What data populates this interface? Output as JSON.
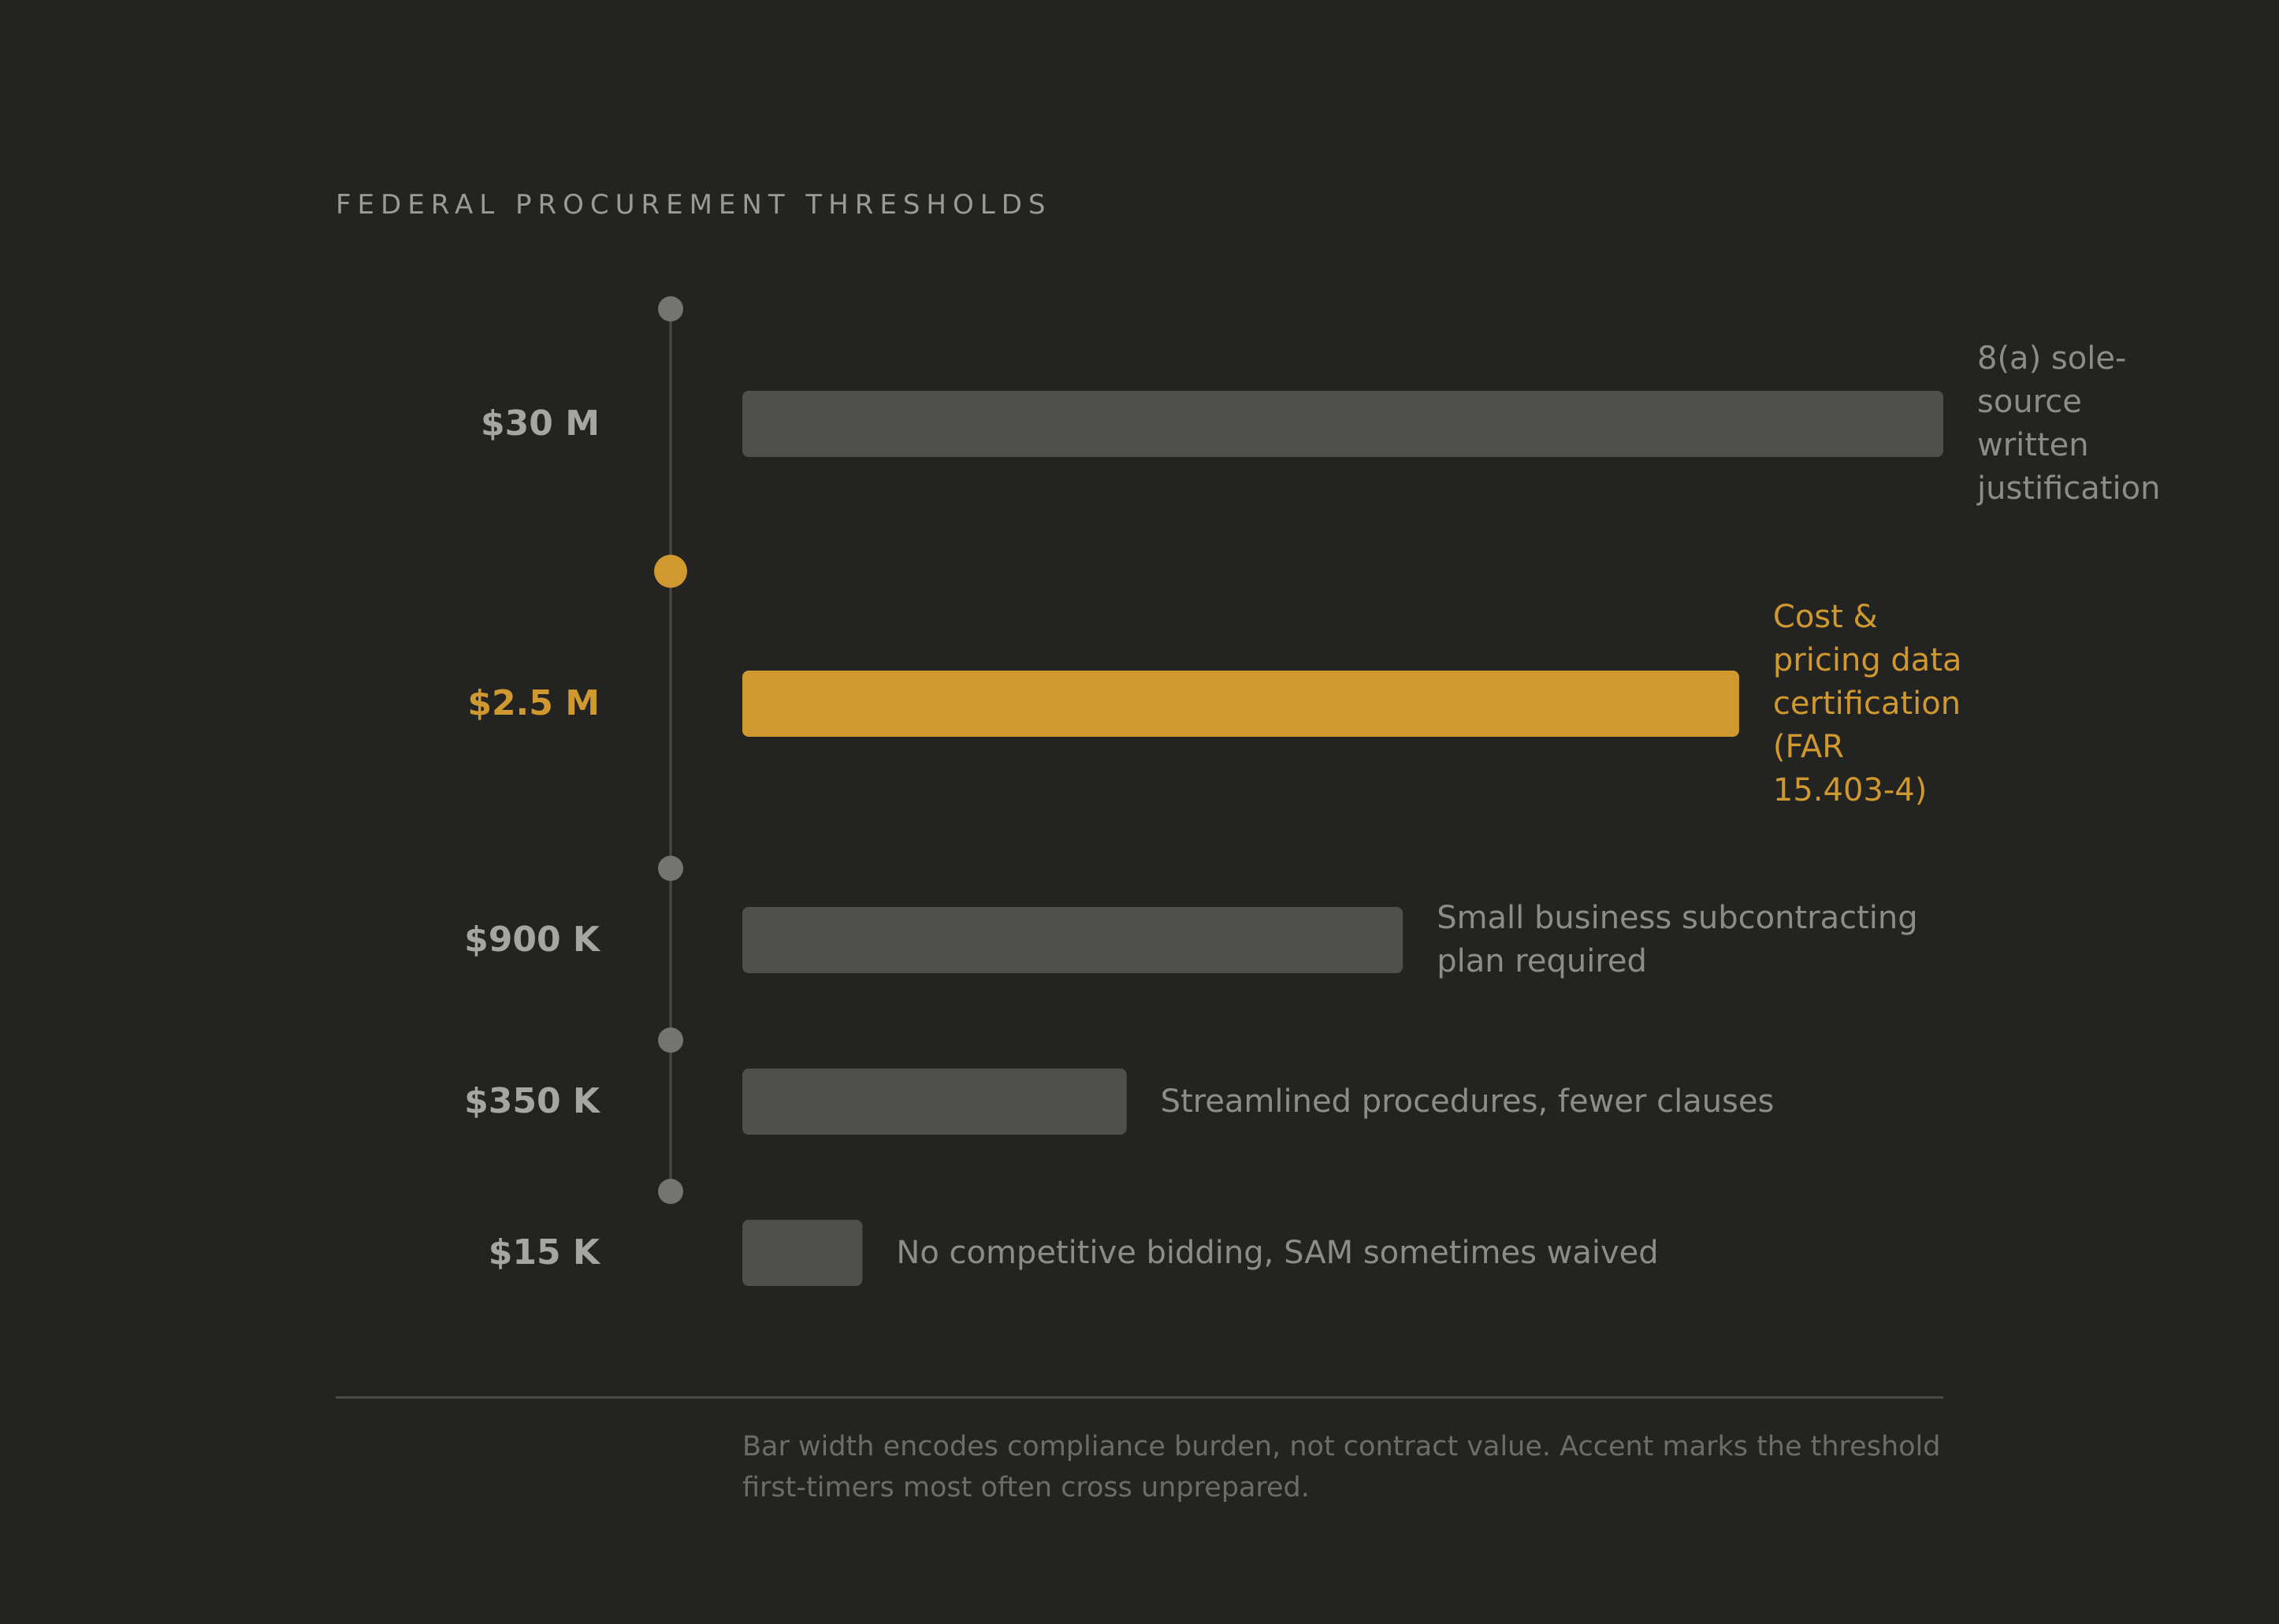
{
  "header": {
    "title": "FEDERAL PROCUREMENT THRESHOLDS"
  },
  "chart_data": {
    "type": "bar",
    "orientation": "horizontal",
    "categories": [
      "$30 M",
      "$2.5 M",
      "$900 K",
      "$350 K",
      "$15 K"
    ],
    "annotations": [
      "8(a) sole-source written justification",
      "Cost & pricing data certification (FAR 15.403-4)",
      "Small business subcontracting plan required",
      "Streamlined procedures, fewer clauses",
      "No competitive bidding, SAM sometimes waived"
    ],
    "values": [
      100,
      83,
      55,
      32,
      10
    ],
    "highlight_index": 1,
    "colors": {
      "bar": "#4f4f4d",
      "accent": "#d0992f",
      "marker": "#747472",
      "axis": "#4a4a48"
    }
  },
  "footer": {
    "note": "Bar width encodes compliance burden, not contract value. Accent marks the threshold first-timers most often cross unprepared."
  }
}
